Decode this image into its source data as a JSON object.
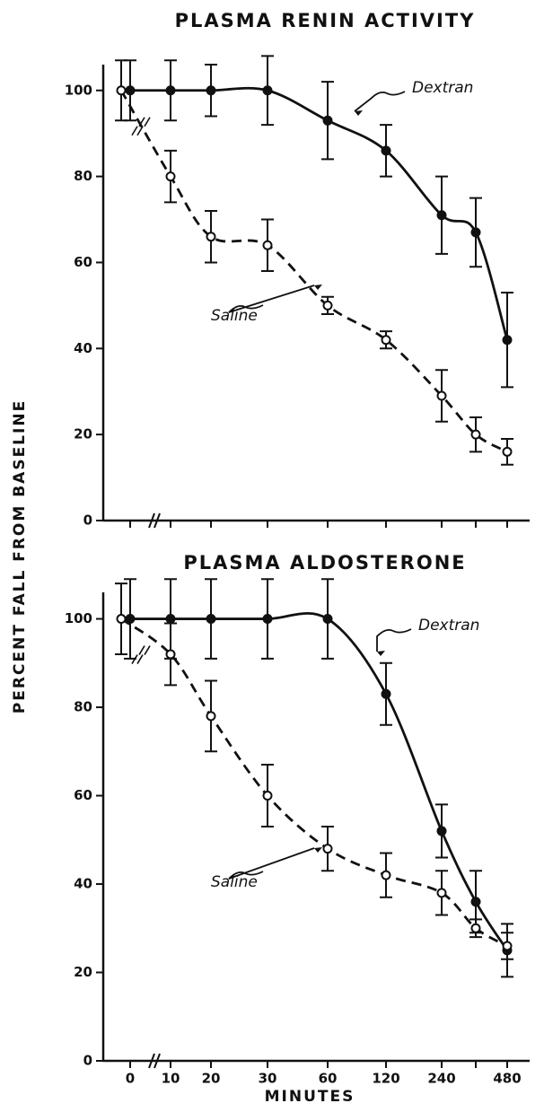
{
  "ylabel": "PERCENT FALL FROM BASELINE",
  "xlabel": "MINUTES",
  "chart_data": [
    {
      "type": "line",
      "title": "PLASMA RENIN ACTIVITY",
      "ylim": [
        0,
        106
      ],
      "yticks": [
        0,
        20,
        40,
        60,
        80,
        100
      ],
      "series": [
        {
          "name": "Dextran",
          "color": "#111111",
          "dashed": false,
          "marker": "filled",
          "values": [
            100,
            100,
            100,
            100,
            93,
            86,
            71,
            67,
            42
          ],
          "errors": [
            7,
            7,
            6,
            8,
            9,
            6,
            9,
            8,
            11
          ]
        },
        {
          "name": "Saline",
          "color": "#111111",
          "dashed": true,
          "marker": "open",
          "values": [
            100,
            80,
            66,
            64,
            50,
            42,
            29,
            20,
            16
          ],
          "errors": [
            7,
            6,
            6,
            6,
            2,
            2,
            6,
            4,
            3
          ]
        }
      ]
    },
    {
      "type": "line",
      "title": "PLASMA ALDOSTERONE",
      "categories": [
        "0",
        "10",
        "20",
        "30",
        "60",
        "120",
        "240",
        null,
        "480"
      ],
      "ylim": [
        0,
        106
      ],
      "yticks": [
        0,
        20,
        40,
        60,
        80,
        100
      ],
      "series": [
        {
          "name": "Dextran",
          "color": "#111111",
          "dashed": false,
          "marker": "filled",
          "values": [
            100,
            100,
            100,
            100,
            100,
            83,
            52,
            36,
            25
          ],
          "errors": [
            9,
            9,
            9,
            9,
            9,
            7,
            6,
            7,
            6
          ]
        },
        {
          "name": "Saline",
          "color": "#111111",
          "dashed": true,
          "marker": "open",
          "values": [
            100,
            92,
            78,
            60,
            48,
            42,
            38,
            30,
            26
          ],
          "errors": [
            8,
            7,
            8,
            7,
            5,
            5,
            5,
            2,
            3
          ]
        }
      ]
    }
  ]
}
